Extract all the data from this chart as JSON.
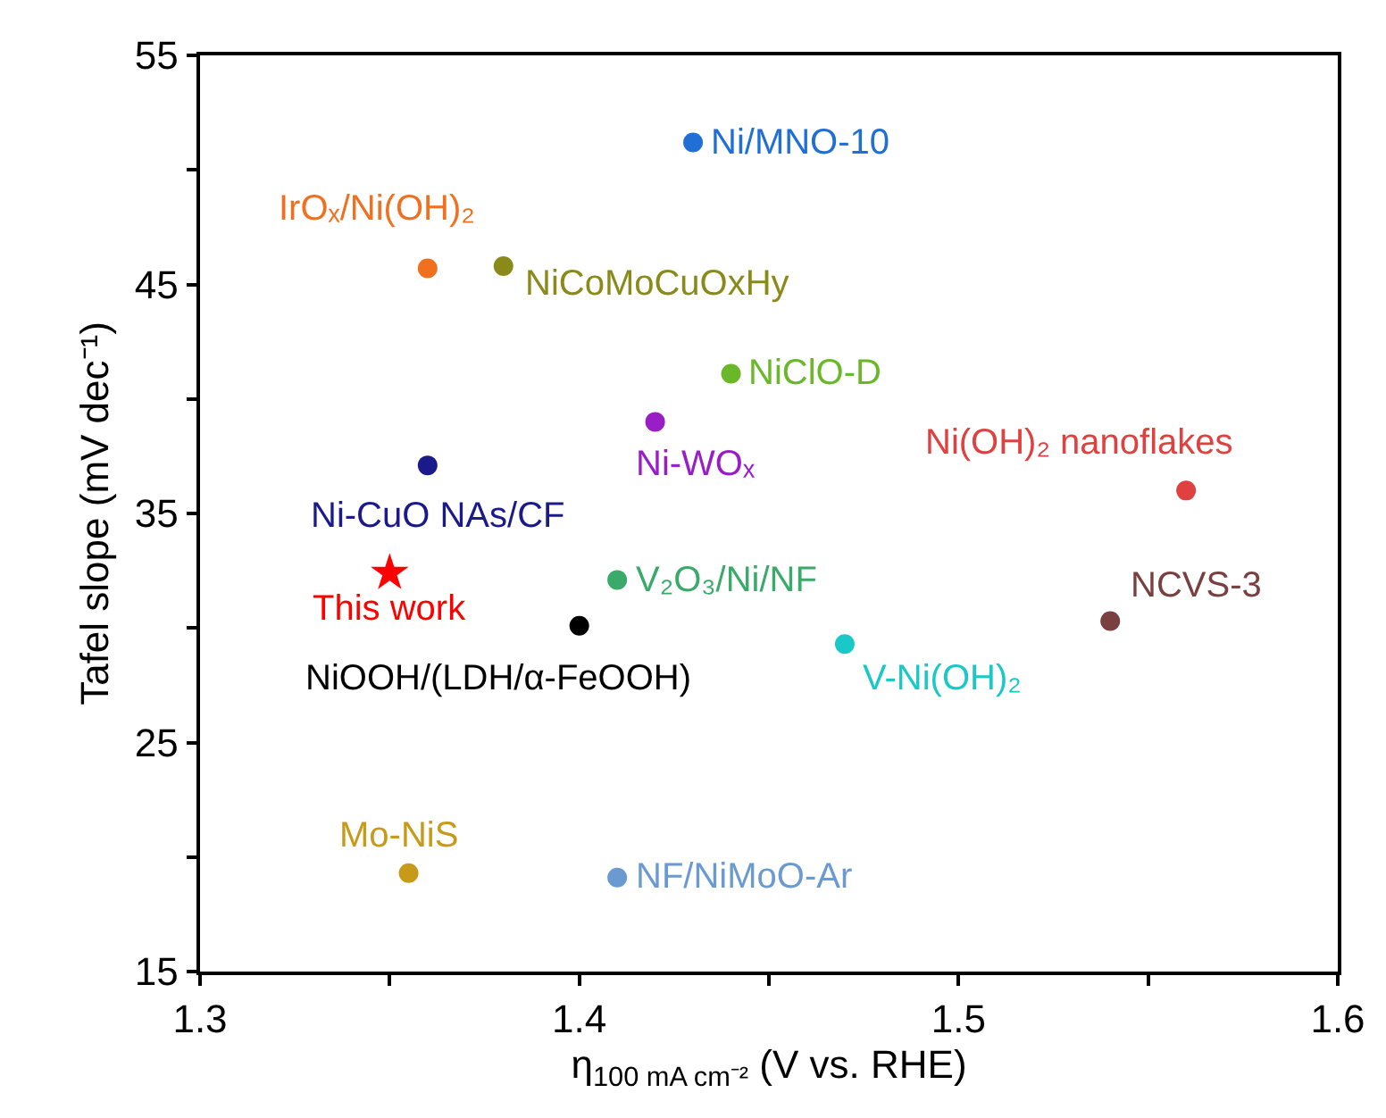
{
  "chart_data": {
    "type": "scatter",
    "xlabel": "η$_{100 mA cm⁻²}$ (V vs. RHE)",
    "ylabel": "Tafel slope (mV dec⁻¹)",
    "xlim": [
      1.3,
      1.6
    ],
    "xticks": [
      1.3,
      {
        "value": 1.35,
        "label": null
      },
      1.4,
      {
        "value": 1.45,
        "label": null
      },
      1.5,
      {
        "value": 1.55,
        "label": null
      },
      1.6
    ],
    "ylim": [
      15,
      55
    ],
    "yticks": [
      15,
      {
        "value": 20,
        "label": null
      },
      25,
      {
        "value": 30,
        "label": null
      },
      35,
      {
        "value": 40,
        "label": null
      },
      45,
      {
        "value": 50,
        "label": null
      },
      55
    ],
    "legend": false,
    "marker": "circle",
    "series": [
      {
        "name": "Ni/MNO-10",
        "color": "#1f6fd6",
        "x": [
          1.43
        ],
        "values": [
          51.2
        ]
      },
      {
        "name": "IrOₓ/Ni(OH)₂",
        "color": "#f07020",
        "x": [
          1.36
        ],
        "values": [
          45.7
        ]
      },
      {
        "name": "NiCoMoCuOxHy",
        "color": "#8a8a1a",
        "x": [
          1.38
        ],
        "values": [
          45.8
        ]
      },
      {
        "name": "NiClO-D",
        "color": "#6ab82a",
        "x": [
          1.44
        ],
        "values": [
          41.1
        ]
      },
      {
        "name": "Ni-WOₓ",
        "color": "#9a1ec8",
        "x": [
          1.42
        ],
        "values": [
          39.0
        ]
      },
      {
        "name": "Ni-CuO NAs/CF",
        "color": "#1a1a8a",
        "x": [
          1.36
        ],
        "values": [
          37.1
        ]
      },
      {
        "name": "This work",
        "color": "#ff0000",
        "marker": "star",
        "x": [
          1.35
        ],
        "values": [
          32.4
        ]
      },
      {
        "name": "V₂O₃/Ni/NF",
        "color": "#3aaa6a",
        "x": [
          1.41
        ],
        "values": [
          32.1
        ]
      },
      {
        "name": "NiOOH/(LDH/α-FeOOH)",
        "color": "#000000",
        "x": [
          1.4
        ],
        "values": [
          30.1
        ]
      },
      {
        "name": "Mo-NiS",
        "color": "#c89a1a",
        "x": [
          1.355
        ],
        "values": [
          19.3
        ]
      },
      {
        "name": "NF/NiMoO-Ar",
        "color": "#6a9ad0",
        "x": [
          1.41
        ],
        "values": [
          19.1
        ]
      },
      {
        "name": "V-Ni(OH)₂",
        "color": "#1ac8c8",
        "x": [
          1.47
        ],
        "values": [
          29.3
        ]
      },
      {
        "name": "NCVS-3",
        "color": "#7a4040",
        "x": [
          1.54
        ],
        "values": [
          30.3
        ]
      },
      {
        "name": "Ni(OH)₂ nanoflakes",
        "color": "#e04040",
        "x": [
          1.56
        ],
        "values": [
          36.0
        ]
      }
    ]
  }
}
